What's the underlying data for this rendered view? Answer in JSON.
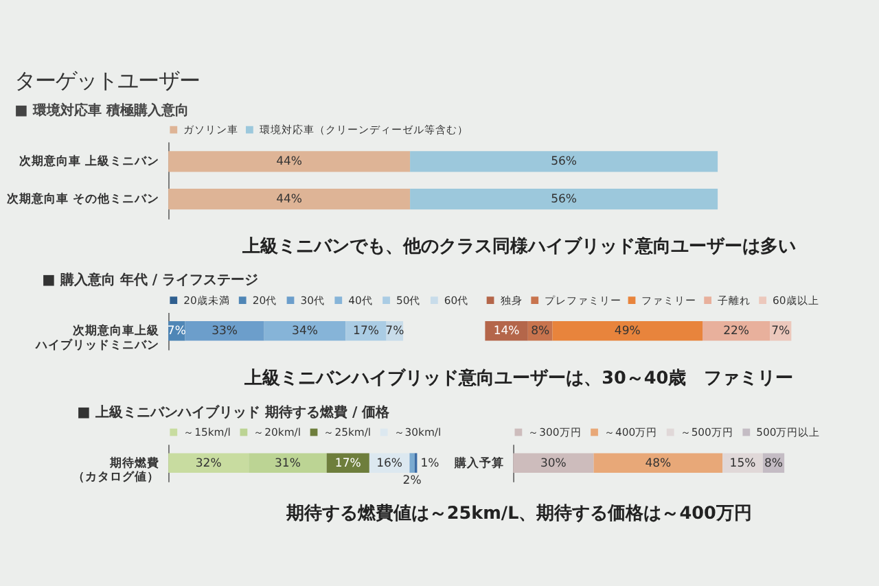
{
  "chart_data": [
    {
      "type": "bar",
      "orientation": "horizontal",
      "stacked": true,
      "title": "ターゲットユーザー",
      "subtitle": "■ 環境対応車 積極購入意向",
      "categories": [
        "次期意向車 上級ミニバン",
        "次期意向車 その他ミニバン"
      ],
      "series": [
        {
          "name": "ガソリン車",
          "color": "#deb496",
          "values": [
            44,
            44
          ],
          "value_labels": [
            "44%",
            "44%"
          ]
        },
        {
          "name": "環境対応車（クリーンディーゼル等含む）",
          "color": "#9cc8dc",
          "values": [
            56,
            56
          ],
          "value_labels": [
            "56%",
            "56%"
          ]
        }
      ],
      "xlim": [
        0,
        100
      ],
      "legend": "top",
      "tick_labels": "y",
      "annotations": [
        "上級ミニバンでも、他のクラス同様ハイブリッド意向ユーザーは多い"
      ]
    },
    {
      "type": "bar",
      "orientation": "horizontal",
      "stacked": true,
      "title": "■ 購入意向 年代 / ライフステージ",
      "categories": [
        "次期意向車上級ハイブリッドミニバン"
      ],
      "series": [
        {
          "name": "20歳未満",
          "color": "#2f5f8f",
          "values": [
            null
          ],
          "value_labels": [
            null
          ]
        },
        {
          "name": "20代",
          "color": "#4f86b6",
          "values": [
            7
          ],
          "value_labels": [
            "7%"
          ]
        },
        {
          "name": "30代",
          "color": "#6c9ecb",
          "values": [
            33
          ],
          "value_labels": [
            "33%"
          ]
        },
        {
          "name": "40代",
          "color": "#86b4d8",
          "values": [
            34
          ],
          "value_labels": [
            "34%"
          ]
        },
        {
          "name": "50代",
          "color": "#aacce4",
          "values": [
            17
          ],
          "value_labels": [
            "17%"
          ]
        },
        {
          "name": "60代",
          "color": "#c8dcea",
          "values": [
            7
          ],
          "value_labels": [
            "7%"
          ]
        }
      ],
      "xlim": [
        0,
        100
      ],
      "legend": "top",
      "tick_labels": "y",
      "annotations": [
        "上級ミニバンハイブリッド意向ユーザーは、30～40歳　ファミリー"
      ]
    },
    {
      "type": "bar",
      "orientation": "horizontal",
      "stacked": true,
      "categories": [
        null
      ],
      "series": [
        {
          "name": "独身",
          "color": "#b4664a",
          "values": [
            14
          ],
          "value_labels": [
            "14%"
          ]
        },
        {
          "name": "プレファミリー",
          "color": "#c8744e",
          "values": [
            8
          ],
          "value_labels": [
            "8%"
          ]
        },
        {
          "name": "ファミリー",
          "color": "#e8843c",
          "values": [
            49
          ],
          "value_labels": [
            "49%"
          ]
        },
        {
          "name": "子離れ",
          "color": "#e8b09c",
          "values": [
            22
          ],
          "value_labels": [
            "22%"
          ]
        },
        {
          "name": "60歳以上",
          "color": "#ecc8bc",
          "values": [
            7
          ],
          "value_labels": [
            "7%"
          ]
        }
      ],
      "xlim": [
        0,
        100
      ],
      "legend": "top",
      "tick_labels": false
    },
    {
      "type": "bar",
      "orientation": "horizontal",
      "stacked": true,
      "title": "■ 上級ミニバンハイブリッド 期待する燃費 / 価格",
      "categories": [
        "期待燃費（カタログ値）"
      ],
      "series": [
        {
          "name": "～15km/l",
          "color": "#c8dca0",
          "values": [
            32
          ],
          "value_labels": [
            "32%"
          ]
        },
        {
          "name": "～20km/l",
          "color": "#bcd494",
          "values": [
            31
          ],
          "value_labels": [
            "31%"
          ]
        },
        {
          "name": "～25km/l",
          "color": "#6e7e3c",
          "values": [
            17
          ],
          "value_labels": [
            "17%"
          ]
        },
        {
          "name": "～30km/l",
          "color": "#dce8f0",
          "values": [
            16
          ],
          "value_labels": [
            "16%"
          ]
        },
        {
          "color": "#7aaad0",
          "values": [
            2
          ],
          "value_labels": [
            "2%"
          ]
        },
        {
          "color": "#3c6ca4",
          "values": [
            1
          ],
          "value_labels": [
            "1%"
          ]
        }
      ],
      "xlim": [
        0,
        100
      ],
      "legend": "top",
      "tick_labels": "y",
      "annotations": [
        "期待する燃費値は～25km/L、期待する価格は～400万円"
      ]
    },
    {
      "type": "bar",
      "orientation": "horizontal",
      "stacked": true,
      "categories": [
        "購入予算"
      ],
      "series": [
        {
          "name": "～300万円",
          "color": "#cdbcbc",
          "values": [
            30
          ],
          "value_labels": [
            "30%"
          ]
        },
        {
          "name": "～400万円",
          "color": "#e8a878",
          "values": [
            48
          ],
          "value_labels": [
            "48%"
          ]
        },
        {
          "name": "～500万円",
          "color": "#e0d8d8",
          "values": [
            15
          ],
          "value_labels": [
            "15%"
          ]
        },
        {
          "name": "500万円以上",
          "color": "#c4bcc4",
          "values": [
            8
          ],
          "value_labels": [
            "8%"
          ]
        }
      ],
      "xlim": [
        0,
        101
      ],
      "legend": "top",
      "tick_labels": "y"
    }
  ]
}
